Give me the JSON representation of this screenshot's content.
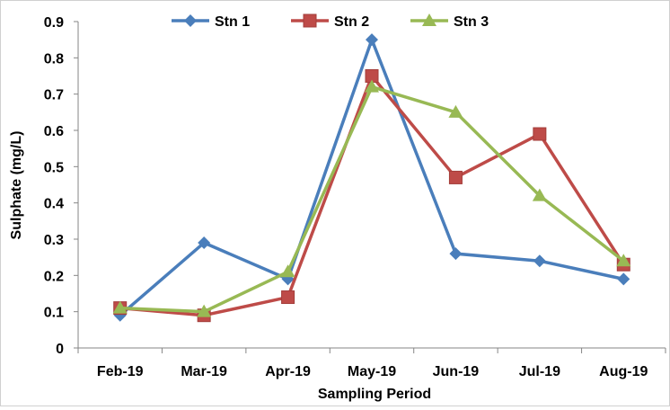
{
  "chart_data": {
    "type": "line",
    "title": "",
    "xlabel": "Sampling Period",
    "ylabel": "Sulphate (mg/L)",
    "categories": [
      "Feb-19",
      "Mar-19",
      "Apr-19",
      "May-19",
      "Jun-19",
      "Jul-19",
      "Aug-19"
    ],
    "ylim": [
      0,
      0.9
    ],
    "yticks": [
      "0",
      "0.1",
      "0.2",
      "0.3",
      "0.4",
      "0.5",
      "0.6",
      "0.7",
      "0.8",
      "0.9"
    ],
    "grid": false,
    "legend_position": "top",
    "series": [
      {
        "name": "Stn 1",
        "color": "#4a7ebb",
        "marker": "diamond",
        "values": [
          0.09,
          0.29,
          0.19,
          0.85,
          0.26,
          0.24,
          0.19
        ]
      },
      {
        "name": "Stn 2",
        "color": "#be4b48",
        "marker": "square",
        "values": [
          0.11,
          0.09,
          0.14,
          0.75,
          0.47,
          0.59,
          0.23
        ]
      },
      {
        "name": "Stn 3",
        "color": "#98b954",
        "marker": "triangle",
        "values": [
          0.11,
          0.1,
          0.21,
          0.72,
          0.65,
          0.42,
          0.24
        ]
      }
    ]
  }
}
